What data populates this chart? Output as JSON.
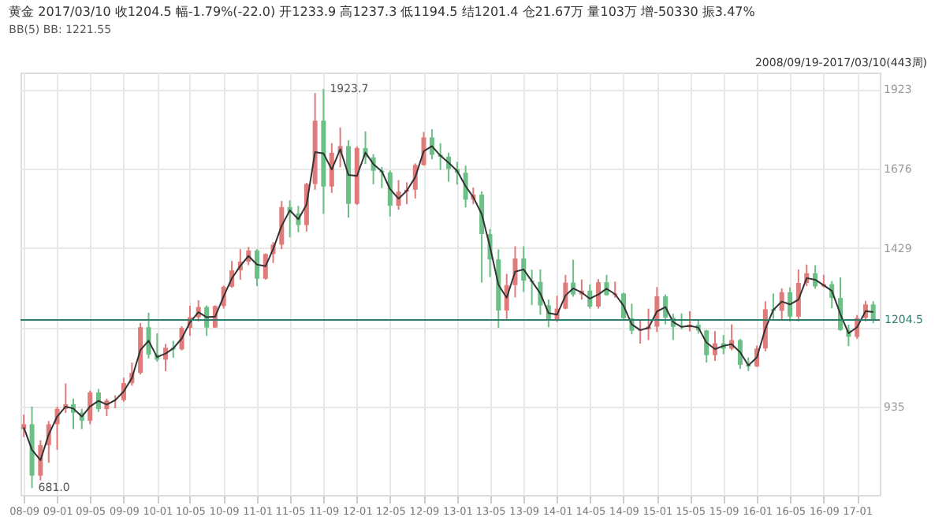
{
  "chart_data": {
    "type": "candlestick",
    "title": "黄金  2017/03/10  收1204.5  幅-1.79%(-22.0)  开1233.9  高1237.3  低1194.5  结1201.4  仓21.67万  量103万  增-50330  振3.47%",
    "subtitle": "BB(5) BB: 1221.55",
    "x": [
      "2008-09",
      "2008-10",
      "2008-11",
      "2008-12",
      "2009-01",
      "2009-02",
      "2009-03",
      "2009-04",
      "2009-05",
      "2009-06",
      "2009-07",
      "2009-08",
      "2009-09",
      "2009-10",
      "2009-11",
      "2009-12",
      "2010-01",
      "2010-02",
      "2010-03",
      "2010-04",
      "2010-05",
      "2010-06",
      "2010-07",
      "2010-08",
      "2010-09",
      "2010-10",
      "2010-11",
      "2010-12",
      "2011-01",
      "2011-02",
      "2011-03",
      "2011-04",
      "2011-05",
      "2011-06",
      "2011-07",
      "2011-08",
      "2011-09",
      "2011-10",
      "2011-11",
      "2011-12",
      "2012-01",
      "2012-02",
      "2012-03",
      "2012-04",
      "2012-05",
      "2012-06",
      "2012-07",
      "2012-08",
      "2012-09",
      "2012-10",
      "2012-11",
      "2012-12",
      "2013-01",
      "2013-02",
      "2013-03",
      "2013-04",
      "2013-05",
      "2013-06",
      "2013-07",
      "2013-08",
      "2013-09",
      "2013-10",
      "2013-11",
      "2013-12",
      "2014-01",
      "2014-02",
      "2014-03",
      "2014-04",
      "2014-05",
      "2014-06",
      "2014-07",
      "2014-08",
      "2014-09",
      "2014-10",
      "2014-11",
      "2014-12",
      "2015-01",
      "2015-02",
      "2015-03",
      "2015-04",
      "2015-05",
      "2015-06",
      "2015-07",
      "2015-08",
      "2015-09",
      "2015-10",
      "2015-11",
      "2015-12",
      "2016-01",
      "2016-02",
      "2016-03",
      "2016-04",
      "2016-05",
      "2016-06",
      "2016-07",
      "2016-08",
      "2016-09",
      "2016-10",
      "2016-11",
      "2016-12",
      "2017-01",
      "2017-02",
      "2017-03"
    ],
    "ohlc": [
      [
        865,
        910,
        840,
        880
      ],
      [
        880,
        935,
        681,
        720
      ],
      [
        720,
        830,
        705,
        815
      ],
      [
        815,
        890,
        760,
        880
      ],
      [
        880,
        935,
        800,
        928
      ],
      [
        928,
        1007,
        915,
        942
      ],
      [
        942,
        960,
        865,
        916
      ],
      [
        916,
        928,
        865,
        891
      ],
      [
        891,
        985,
        880,
        979
      ],
      [
        979,
        990,
        918,
        927
      ],
      [
        927,
        960,
        905,
        954
      ],
      [
        954,
        970,
        930,
        955
      ],
      [
        955,
        1025,
        950,
        1008
      ],
      [
        1008,
        1072,
        1000,
        1040
      ],
      [
        1040,
        1195,
        1035,
        1182
      ],
      [
        1182,
        1227,
        1085,
        1097
      ],
      [
        1097,
        1163,
        1075,
        1081
      ],
      [
        1081,
        1130,
        1045,
        1118
      ],
      [
        1118,
        1140,
        1087,
        1113
      ],
      [
        1113,
        1185,
        1110,
        1180
      ],
      [
        1180,
        1249,
        1155,
        1213
      ],
      [
        1213,
        1266,
        1200,
        1245
      ],
      [
        1245,
        1250,
        1155,
        1181
      ],
      [
        1181,
        1250,
        1180,
        1248
      ],
      [
        1248,
        1312,
        1240,
        1308
      ],
      [
        1308,
        1388,
        1305,
        1359
      ],
      [
        1359,
        1425,
        1330,
        1386
      ],
      [
        1386,
        1432,
        1375,
        1421
      ],
      [
        1421,
        1425,
        1310,
        1333
      ],
      [
        1333,
        1412,
        1330,
        1410
      ],
      [
        1410,
        1447,
        1382,
        1439
      ],
      [
        1439,
        1575,
        1425,
        1556
      ],
      [
        1556,
        1577,
        1462,
        1536
      ],
      [
        1536,
        1560,
        1478,
        1500
      ],
      [
        1500,
        1632,
        1480,
        1628
      ],
      [
        1628,
        1911,
        1610,
        1825
      ],
      [
        1825,
        1923.7,
        1535,
        1620
      ],
      [
        1620,
        1755,
        1600,
        1725
      ],
      [
        1725,
        1804,
        1680,
        1746
      ],
      [
        1746,
        1764,
        1523,
        1566
      ],
      [
        1566,
        1745,
        1563,
        1740
      ],
      [
        1740,
        1792,
        1690,
        1711
      ],
      [
        1711,
        1721,
        1627,
        1669
      ],
      [
        1669,
        1681,
        1615,
        1664
      ],
      [
        1664,
        1670,
        1527,
        1560
      ],
      [
        1560,
        1640,
        1548,
        1604
      ],
      [
        1604,
        1633,
        1565,
        1610
      ],
      [
        1610,
        1692,
        1583,
        1687
      ],
      [
        1687,
        1790,
        1685,
        1773
      ],
      [
        1773,
        1798,
        1705,
        1719
      ],
      [
        1719,
        1755,
        1672,
        1713
      ],
      [
        1713,
        1725,
        1635,
        1675
      ],
      [
        1675,
        1697,
        1626,
        1663
      ],
      [
        1663,
        1685,
        1555,
        1579
      ],
      [
        1579,
        1617,
        1565,
        1595
      ],
      [
        1595,
        1605,
        1321,
        1472
      ],
      [
        1472,
        1488,
        1338,
        1393
      ],
      [
        1393,
        1424,
        1180,
        1234
      ],
      [
        1234,
        1348,
        1208,
        1313
      ],
      [
        1313,
        1434,
        1275,
        1396
      ],
      [
        1396,
        1434,
        1292,
        1327
      ],
      [
        1327,
        1361,
        1251,
        1323
      ],
      [
        1323,
        1362,
        1221,
        1250
      ],
      [
        1250,
        1268,
        1182,
        1202
      ],
      [
        1202,
        1280,
        1198,
        1240
      ],
      [
        1240,
        1345,
        1238,
        1321
      ],
      [
        1321,
        1392,
        1277,
        1284
      ],
      [
        1284,
        1331,
        1268,
        1296
      ],
      [
        1296,
        1315,
        1240,
        1246
      ],
      [
        1246,
        1332,
        1240,
        1322
      ],
      [
        1322,
        1345,
        1280,
        1282
      ],
      [
        1282,
        1324,
        1274,
        1287
      ],
      [
        1287,
        1290,
        1205,
        1210
      ],
      [
        1210,
        1255,
        1160,
        1171
      ],
      [
        1171,
        1205,
        1131,
        1175
      ],
      [
        1175,
        1240,
        1142,
        1184
      ],
      [
        1184,
        1307,
        1167,
        1278
      ],
      [
        1278,
        1284,
        1191,
        1212
      ],
      [
        1212,
        1224,
        1142,
        1183
      ],
      [
        1183,
        1225,
        1175,
        1182
      ],
      [
        1182,
        1232,
        1169,
        1190
      ],
      [
        1190,
        1205,
        1162,
        1172
      ],
      [
        1172,
        1174,
        1072,
        1095
      ],
      [
        1095,
        1170,
        1077,
        1132
      ],
      [
        1132,
        1158,
        1098,
        1115
      ],
      [
        1115,
        1191,
        1110,
        1142
      ],
      [
        1142,
        1146,
        1052,
        1065
      ],
      [
        1065,
        1088,
        1046,
        1060
      ],
      [
        1060,
        1125,
        1058,
        1116
      ],
      [
        1116,
        1263,
        1107,
        1238
      ],
      [
        1238,
        1287,
        1208,
        1233
      ],
      [
        1233,
        1303,
        1207,
        1291
      ],
      [
        1291,
        1306,
        1200,
        1215
      ],
      [
        1215,
        1362,
        1200,
        1320
      ],
      [
        1320,
        1377,
        1310,
        1350
      ],
      [
        1350,
        1375,
        1302,
        1309
      ],
      [
        1309,
        1345,
        1306,
        1316
      ],
      [
        1316,
        1326,
        1241,
        1273
      ],
      [
        1273,
        1337,
        1171,
        1173
      ],
      [
        1173,
        1190,
        1123,
        1152
      ],
      [
        1152,
        1220,
        1146,
        1211
      ],
      [
        1211,
        1264,
        1200,
        1253
      ],
      [
        1253,
        1263,
        1194.5,
        1204.5
      ]
    ],
    "colors": [
      "#e07b7b",
      "#6cbf86",
      "#e07b7b",
      "#e07b7b",
      "#e07b7b",
      "#e07b7b",
      "#6cbf86",
      "#6cbf86",
      "#e07b7b",
      "#6cbf86",
      "#e07b7b",
      "#e07b7b",
      "#e07b7b",
      "#e07b7b",
      "#e07b7b",
      "#6cbf86",
      "#6cbf86",
      "#e07b7b",
      "#6cbf86",
      "#e07b7b",
      "#e07b7b",
      "#e07b7b",
      "#6cbf86",
      "#e07b7b",
      "#e07b7b",
      "#e07b7b",
      "#e07b7b",
      "#e07b7b",
      "#6cbf86",
      "#e07b7b",
      "#e07b7b",
      "#e07b7b",
      "#6cbf86",
      "#6cbf86",
      "#e07b7b",
      "#e07b7b",
      "#6cbf86",
      "#e07b7b",
      "#e07b7b",
      "#6cbf86",
      "#e07b7b",
      "#6cbf86",
      "#6cbf86",
      "#6cbf86",
      "#6cbf86",
      "#e07b7b",
      "#e07b7b",
      "#e07b7b",
      "#e07b7b",
      "#6cbf86",
      "#6cbf86",
      "#6cbf86",
      "#6cbf86",
      "#6cbf86",
      "#e07b7b",
      "#6cbf86",
      "#6cbf86",
      "#6cbf86",
      "#e07b7b",
      "#e07b7b",
      "#6cbf86",
      "#6cbf86",
      "#6cbf86",
      "#6cbf86",
      "#e07b7b",
      "#e07b7b",
      "#6cbf86",
      "#e07b7b",
      "#6cbf86",
      "#e07b7b",
      "#6cbf86",
      "#e07b7b",
      "#6cbf86",
      "#6cbf86",
      "#e07b7b",
      "#e07b7b",
      "#e07b7b",
      "#6cbf86",
      "#6cbf86",
      "#6cbf86",
      "#e07b7b",
      "#6cbf86",
      "#6cbf86",
      "#e07b7b",
      "#6cbf86",
      "#e07b7b",
      "#6cbf86",
      "#6cbf86",
      "#e07b7b",
      "#e07b7b",
      "#6cbf86",
      "#e07b7b",
      "#6cbf86",
      "#e07b7b",
      "#e07b7b",
      "#6cbf86",
      "#e07b7b",
      "#6cbf86",
      "#6cbf86",
      "#6cbf86",
      "#e07b7b",
      "#e07b7b",
      "#6cbf86"
    ],
    "series": [
      {
        "type": "line",
        "color": "#333333",
        "values": [
          870,
          800,
          768,
          848,
          904,
          935,
          929,
          904,
          935,
          953,
          941,
          955,
          982,
          1024,
          1111,
          1140,
          1089,
          1100,
          1116,
          1147,
          1197,
          1229,
          1213,
          1215,
          1278,
          1334,
          1373,
          1404,
          1377,
          1372,
          1425,
          1498,
          1546,
          1518,
          1564,
          1727,
          1723,
          1673,
          1736,
          1656,
          1653,
          1726,
          1690,
          1667,
          1612,
          1582,
          1607,
          1649,
          1730,
          1746,
          1716,
          1694,
          1669,
          1621,
          1587,
          1534,
          1433,
          1314,
          1274,
          1355,
          1362,
          1325,
          1287,
          1226,
          1221,
          1281,
          1303,
          1290,
          1271,
          1284,
          1302,
          1285,
          1249,
          1191,
          1173,
          1180,
          1231,
          1245,
          1198,
          1183,
          1186,
          1181,
          1134,
          1114,
          1124,
          1129,
          1104,
          1063,
          1088,
          1177,
          1236,
          1262,
          1253,
          1268,
          1335,
          1330,
          1313,
          1295,
          1223,
          1163,
          1182,
          1232,
          1229
        ]
      }
    ],
    "xlim": [
      "2008-08-20",
      "2017-03-25"
    ],
    "xticks": [
      {
        "value": "2008-09",
        "label": "08-09"
      },
      {
        "value": "2009-01",
        "label": "09-01"
      },
      {
        "value": "2009-05",
        "label": "09-05"
      },
      {
        "value": "2009-09",
        "label": "09-09"
      },
      {
        "value": "2010-01",
        "label": "10-01"
      },
      {
        "value": "2010-05",
        "label": "10-05"
      },
      {
        "value": "2010-09",
        "label": "10-09"
      },
      {
        "value": "2011-01",
        "label": "11-01"
      },
      {
        "value": "2011-05",
        "label": "11-05"
      },
      {
        "value": "2011-09",
        "label": "11-09"
      },
      {
        "value": "2012-01",
        "label": "12-01"
      },
      {
        "value": "2012-05",
        "label": "12-05"
      },
      {
        "value": "2012-09",
        "label": "12-09"
      },
      {
        "value": "2013-01",
        "label": "13-01"
      },
      {
        "value": "2013-05",
        "label": "13-05"
      },
      {
        "value": "2013-09",
        "label": "13-09"
      },
      {
        "value": "2014-01",
        "label": "14-01"
      },
      {
        "value": "2014-05",
        "label": "14-05"
      },
      {
        "value": "2014-09",
        "label": "14-09"
      },
      {
        "value": "2015-01",
        "label": "15-01"
      },
      {
        "value": "2015-05",
        "label": "15-05"
      },
      {
        "value": "2015-09",
        "label": "15-09"
      },
      {
        "value": "2016-01",
        "label": "16-01"
      },
      {
        "value": "2016-05",
        "label": "16-05"
      },
      {
        "value": "2016-09",
        "label": "16-09"
      },
      {
        "value": "2017-01",
        "label": "17-01"
      }
    ],
    "ylim": [
      660,
      1975
    ],
    "yticks": [
      935,
      {
        "value": 1182,
        "label": null
      },
      1429,
      1676,
      1923
    ],
    "grid": true,
    "ref_lines": [
      {
        "axis": "y",
        "value": 1204.5,
        "label": "1204.5",
        "color": "#2e7d6e"
      }
    ],
    "annotations": [
      {
        "text": "1923.7",
        "x": "2011-09",
        "y": 1923.7
      },
      {
        "text": "681.0",
        "x": "2008-10",
        "y": 681
      },
      "2008/09/19-2017/03/10(443周)"
    ]
  }
}
